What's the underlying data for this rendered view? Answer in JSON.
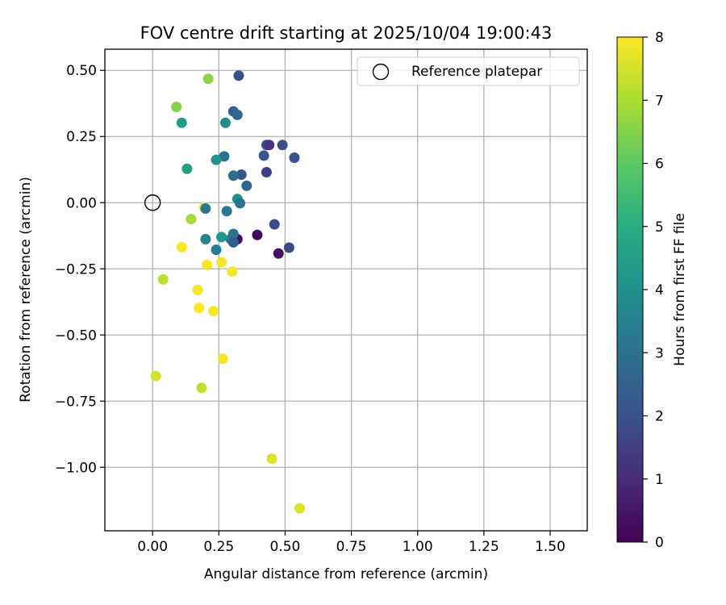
{
  "chart_data": {
    "type": "scatter",
    "title": "FOV centre drift starting at 2025/10/04 19:00:43",
    "xlabel": "Angular distance from reference (arcmin)",
    "ylabel": "Rotation from reference (arcmin)",
    "xlim": [
      -0.18,
      1.64
    ],
    "ylim": [
      -1.24,
      0.58
    ],
    "xticks": [
      0.0,
      0.25,
      0.5,
      0.75,
      1.0,
      1.25,
      1.5
    ],
    "xtick_labels": [
      "0.00",
      "0.25",
      "0.50",
      "0.75",
      "1.00",
      "1.25",
      "1.50"
    ],
    "yticks": [
      0.5,
      0.25,
      0.0,
      -0.25,
      -0.5,
      -0.75,
      -1.0
    ],
    "ytick_labels": [
      "0.50",
      "0.25",
      "0.00",
      "−0.25",
      "−0.50",
      "−0.75",
      "−1.00"
    ],
    "grid": true,
    "legend": {
      "placement": "top-right",
      "entries": [
        "Reference platepar"
      ]
    },
    "reference_point": {
      "x": 0.0,
      "y": 0.0,
      "label": "Reference platepar"
    },
    "colorbar": {
      "label": "Hours from first FF file",
      "colormap": "viridis",
      "min": 0,
      "max": 8,
      "ticks": [
        0,
        1,
        2,
        3,
        4,
        5,
        6,
        7,
        8
      ],
      "tick_labels": [
        "0",
        "1",
        "2",
        "3",
        "4",
        "5",
        "6",
        "7",
        "8"
      ]
    },
    "series": [
      {
        "name": "FOV centre drift",
        "points": [
          {
            "x": 0.325,
            "y": 0.48,
            "h": 2.0
          },
          {
            "x": 0.305,
            "y": 0.345,
            "h": 2.4
          },
          {
            "x": 0.32,
            "y": 0.332,
            "h": 2.6
          },
          {
            "x": 0.275,
            "y": 0.302,
            "h": 3.8
          },
          {
            "x": 0.43,
            "y": 0.218,
            "h": 2.1
          },
          {
            "x": 0.44,
            "y": 0.218,
            "h": 1.2
          },
          {
            "x": 0.49,
            "y": 0.218,
            "h": 1.9
          },
          {
            "x": 0.42,
            "y": 0.178,
            "h": 2.2
          },
          {
            "x": 0.535,
            "y": 0.17,
            "h": 2.0
          },
          {
            "x": 0.27,
            "y": 0.175,
            "h": 3.0
          },
          {
            "x": 0.24,
            "y": 0.162,
            "h": 4.1
          },
          {
            "x": 0.335,
            "y": 0.106,
            "h": 2.1
          },
          {
            "x": 0.305,
            "y": 0.102,
            "h": 2.8
          },
          {
            "x": 0.43,
            "y": 0.115,
            "h": 1.5
          },
          {
            "x": 0.355,
            "y": 0.064,
            "h": 2.7
          },
          {
            "x": 0.32,
            "y": 0.014,
            "h": 4.0
          },
          {
            "x": 0.33,
            "y": -0.002,
            "h": 3.1
          },
          {
            "x": 0.195,
            "y": -0.018,
            "h": 7.9
          },
          {
            "x": 0.2,
            "y": -0.022,
            "h": 3.2
          },
          {
            "x": 0.28,
            "y": -0.032,
            "h": 3.2
          },
          {
            "x": 0.46,
            "y": -0.082,
            "h": 1.8
          },
          {
            "x": 0.395,
            "y": -0.122,
            "h": 0.2
          },
          {
            "x": 0.32,
            "y": -0.138,
            "h": 0.3
          },
          {
            "x": 0.305,
            "y": -0.118,
            "h": 2.9
          },
          {
            "x": 0.295,
            "y": -0.138,
            "h": 3.2
          },
          {
            "x": 0.305,
            "y": -0.15,
            "h": 2.4
          },
          {
            "x": 0.26,
            "y": -0.13,
            "h": 4.2
          },
          {
            "x": 0.2,
            "y": -0.138,
            "h": 3.6
          },
          {
            "x": 0.24,
            "y": -0.178,
            "h": 3.4
          },
          {
            "x": 0.515,
            "y": -0.17,
            "h": 1.8
          },
          {
            "x": 0.475,
            "y": -0.192,
            "h": 0.3
          },
          {
            "x": 0.11,
            "y": -0.168,
            "h": 8.0
          },
          {
            "x": 0.145,
            "y": -0.062,
            "h": 6.9
          },
          {
            "x": 0.26,
            "y": -0.225,
            "h": 7.9
          },
          {
            "x": 0.205,
            "y": -0.235,
            "h": 7.9
          },
          {
            "x": 0.3,
            "y": -0.26,
            "h": 7.9
          },
          {
            "x": 0.04,
            "y": -0.29,
            "h": 7.2
          },
          {
            "x": 0.17,
            "y": -0.33,
            "h": 7.9
          },
          {
            "x": 0.175,
            "y": -0.398,
            "h": 8.0
          },
          {
            "x": 0.23,
            "y": -0.41,
            "h": 7.9
          },
          {
            "x": 0.265,
            "y": -0.59,
            "h": 7.9
          },
          {
            "x": 0.012,
            "y": -0.655,
            "h": 7.5
          },
          {
            "x": 0.185,
            "y": -0.7,
            "h": 7.3
          },
          {
            "x": 0.45,
            "y": -0.968,
            "h": 7.6
          },
          {
            "x": 0.555,
            "y": -1.155,
            "h": 7.6
          },
          {
            "x": 0.21,
            "y": 0.468,
            "h": 6.6
          },
          {
            "x": 0.09,
            "y": 0.362,
            "h": 6.5
          },
          {
            "x": 0.11,
            "y": 0.302,
            "h": 4.4
          },
          {
            "x": 0.13,
            "y": 0.128,
            "h": 4.5
          }
        ]
      }
    ]
  }
}
